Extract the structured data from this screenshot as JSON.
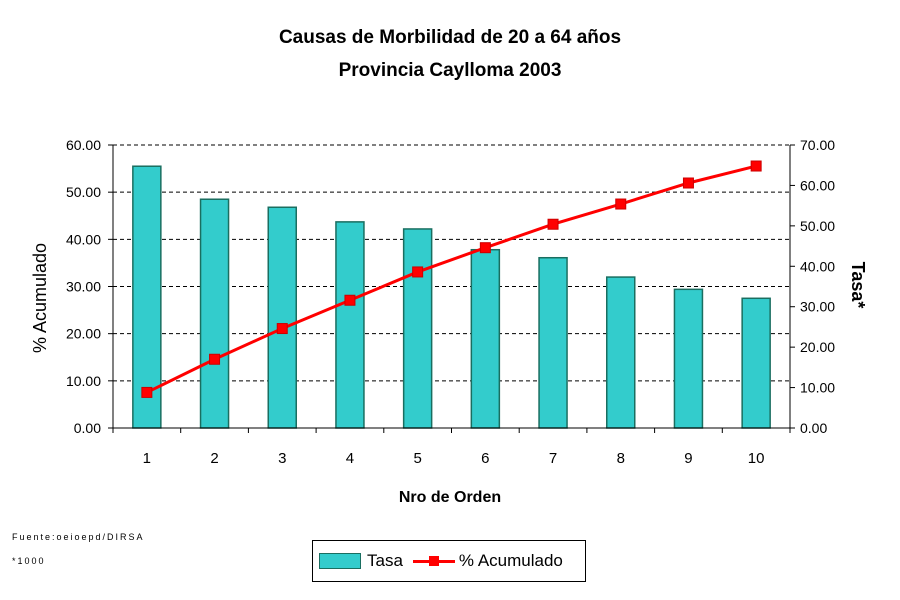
{
  "colors": {
    "bar_fill": "#33cccc",
    "bar_stroke": "#1a6e60",
    "line": "#ff0000",
    "marker": "#ff0000",
    "grid": "#000000"
  },
  "footnotes": {
    "source": "Fuente:oeioepd/DIRSA",
    "unit": "*1000"
  },
  "chart_data": {
    "type": "bar",
    "title": "Causas de Morbilidad de 20 a 64  años",
    "subtitle": "Provincia Caylloma 2003",
    "xlabel": "Nro de Orden",
    "ylabel": "% Acumulado",
    "y2label": "Tasa*",
    "categories": [
      "1",
      "2",
      "3",
      "4",
      "5",
      "6",
      "7",
      "8",
      "9",
      "10"
    ],
    "ylim": [
      0,
      60
    ],
    "y2lim": [
      0,
      70
    ],
    "yticks": [
      "0.00",
      "10.00",
      "20.00",
      "30.00",
      "40.00",
      "50.00",
      "60.00"
    ],
    "y2ticks": [
      "0.00",
      "10.00",
      "20.00",
      "30.00",
      "40.00",
      "50.00",
      "60.00",
      "70.00"
    ],
    "grid": "horizontal dashed",
    "legend_position": "bottom",
    "series": [
      {
        "name": "Tasa",
        "type": "bar",
        "axis": "left",
        "values": [
          55.5,
          48.5,
          46.8,
          43.7,
          42.2,
          37.8,
          36.1,
          32.0,
          29.4,
          27.5
        ]
      },
      {
        "name": "% Acumulado",
        "type": "line",
        "axis": "right",
        "values": [
          8.8,
          17.0,
          24.6,
          31.6,
          38.6,
          44.6,
          50.4,
          55.4,
          60.6,
          64.8
        ]
      }
    ]
  }
}
